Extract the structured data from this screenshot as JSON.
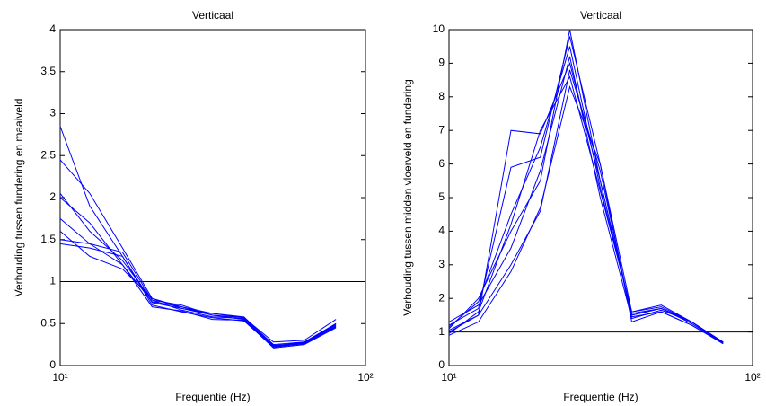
{
  "chart_data": [
    {
      "type": "line",
      "title": "Verticaal",
      "xlabel": "Frequentie (Hz)",
      "ylabel": "Verhouding tussen fundering en maaiveld",
      "x": [
        10,
        12.5,
        16,
        20,
        25,
        31.5,
        40,
        50,
        63,
        80
      ],
      "xscale": "log",
      "xlim": [
        10,
        100
      ],
      "xticks": [
        {
          "value": 10,
          "label": "10¹"
        },
        {
          "value": 100,
          "label": "10²"
        }
      ],
      "ylim": [
        0,
        4
      ],
      "yticks": [
        0,
        0.5,
        1,
        1.5,
        2,
        2.5,
        3,
        3.5,
        4
      ],
      "hline": 1,
      "series": [
        {
          "color": "#0000ff",
          "values": [
            2.85,
            1.9,
            1.3,
            0.75,
            0.68,
            0.6,
            0.55,
            0.22,
            0.27,
            0.48
          ]
        },
        {
          "color": "#0000ff",
          "values": [
            2.45,
            2.05,
            1.4,
            0.8,
            0.7,
            0.62,
            0.57,
            0.25,
            0.28,
            0.5
          ]
        },
        {
          "color": "#0000ff",
          "values": [
            2.05,
            1.6,
            1.25,
            0.78,
            0.66,
            0.58,
            0.56,
            0.23,
            0.26,
            0.47
          ]
        },
        {
          "color": "#0000ff",
          "values": [
            1.75,
            1.45,
            1.2,
            0.7,
            0.65,
            0.55,
            0.54,
            0.21,
            0.25,
            0.45
          ]
        },
        {
          "color": "#0000ff",
          "values": [
            1.5,
            1.45,
            1.35,
            0.78,
            0.72,
            0.6,
            0.57,
            0.28,
            0.3,
            0.55
          ]
        },
        {
          "color": "#0000ff",
          "values": [
            1.6,
            1.3,
            1.15,
            0.8,
            0.68,
            0.62,
            0.58,
            0.24,
            0.27,
            0.5
          ]
        },
        {
          "color": "#0000ff",
          "values": [
            1.45,
            1.4,
            1.3,
            0.72,
            0.64,
            0.57,
            0.53,
            0.22,
            0.26,
            0.46
          ]
        },
        {
          "color": "#0000ff",
          "values": [
            2.0,
            1.7,
            1.2,
            0.76,
            0.7,
            0.6,
            0.55,
            0.23,
            0.28,
            0.49
          ]
        }
      ]
    },
    {
      "type": "line",
      "title": "Verticaal",
      "xlabel": "Frequentie (Hz)",
      "ylabel": "Verhouding tussen midden vloerveld en fundering",
      "x": [
        10,
        12.5,
        16,
        20,
        25,
        31.5,
        40,
        50,
        63,
        80
      ],
      "xscale": "log",
      "xlim": [
        10,
        100
      ],
      "xticks": [
        {
          "value": 10,
          "label": "10¹"
        },
        {
          "value": 100,
          "label": "10²"
        }
      ],
      "ylim": [
        0,
        10
      ],
      "yticks": [
        0,
        1,
        2,
        3,
        4,
        5,
        6,
        7,
        8,
        9,
        10
      ],
      "hline": 1,
      "series": [
        {
          "color": "#0000ff",
          "values": [
            1.0,
            1.5,
            7.0,
            6.9,
            9.0,
            5.5,
            1.5,
            1.7,
            1.3,
            0.65
          ]
        },
        {
          "color": "#0000ff",
          "values": [
            1.2,
            1.7,
            5.9,
            6.2,
            9.8,
            6.0,
            1.6,
            1.8,
            1.3,
            0.7
          ]
        },
        {
          "color": "#0000ff",
          "values": [
            0.9,
            1.3,
            2.8,
            4.7,
            8.3,
            6.0,
            1.3,
            1.6,
            1.2,
            0.65
          ]
        },
        {
          "color": "#0000ff",
          "values": [
            1.1,
            2.0,
            4.0,
            5.5,
            10.0,
            5.5,
            1.5,
            1.7,
            1.25,
            0.68
          ]
        },
        {
          "color": "#0000ff",
          "values": [
            1.3,
            1.8,
            3.5,
            5.8,
            9.2,
            5.0,
            1.4,
            1.65,
            1.3,
            0.7
          ]
        },
        {
          "color": "#0000ff",
          "values": [
            0.95,
            1.6,
            4.2,
            7.0,
            8.6,
            5.2,
            1.6,
            1.75,
            1.3,
            0.66
          ]
        },
        {
          "color": "#0000ff",
          "values": [
            1.05,
            1.5,
            3.0,
            4.6,
            8.8,
            5.8,
            1.45,
            1.6,
            1.2,
            0.67
          ]
        },
        {
          "color": "#0000ff",
          "values": [
            1.15,
            1.9,
            4.5,
            6.5,
            9.5,
            5.3,
            1.55,
            1.7,
            1.3,
            0.7
          ]
        }
      ]
    }
  ]
}
